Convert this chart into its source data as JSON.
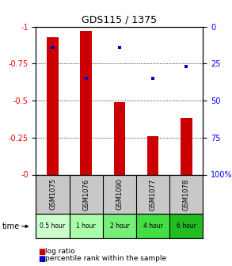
{
  "title": "GDS115 / 1375",
  "samples": [
    "GSM1075",
    "GSM1076",
    "GSM1090",
    "GSM1077",
    "GSM1078"
  ],
  "time_labels": [
    "0.5 hour",
    "1 hour",
    "2 hour",
    "4 hour",
    "6 hour"
  ],
  "time_colors": [
    "#ccffcc",
    "#aaffaa",
    "#77ee77",
    "#44dd44",
    "#22bb22"
  ],
  "log_ratios": [
    -0.93,
    -0.97,
    -0.49,
    -0.26,
    -0.38
  ],
  "percentile_ranks": [
    14,
    35,
    14,
    35,
    27
  ],
  "bar_color": "#cc0000",
  "pct_color": "#0000cc",
  "ylim_left": [
    0.0,
    -1.0
  ],
  "ylim_right": [
    100,
    0
  ],
  "yticks_left": [
    0.0,
    -0.25,
    -0.5,
    -0.75,
    -1.0
  ],
  "ytick_labels_left": [
    "-0",
    "-0.25",
    "-0.5",
    "-0.75",
    "-1"
  ],
  "yticks_right": [
    100,
    75,
    50,
    25,
    0
  ],
  "ytick_labels_right": [
    "100%",
    "75",
    "50",
    "25",
    "0"
  ],
  "bar_width": 0.35,
  "pct_bar_width": 0.1,
  "bg_color": "#ffffff",
  "sample_bg": "#c8c8c8",
  "grid_color": "#000000"
}
